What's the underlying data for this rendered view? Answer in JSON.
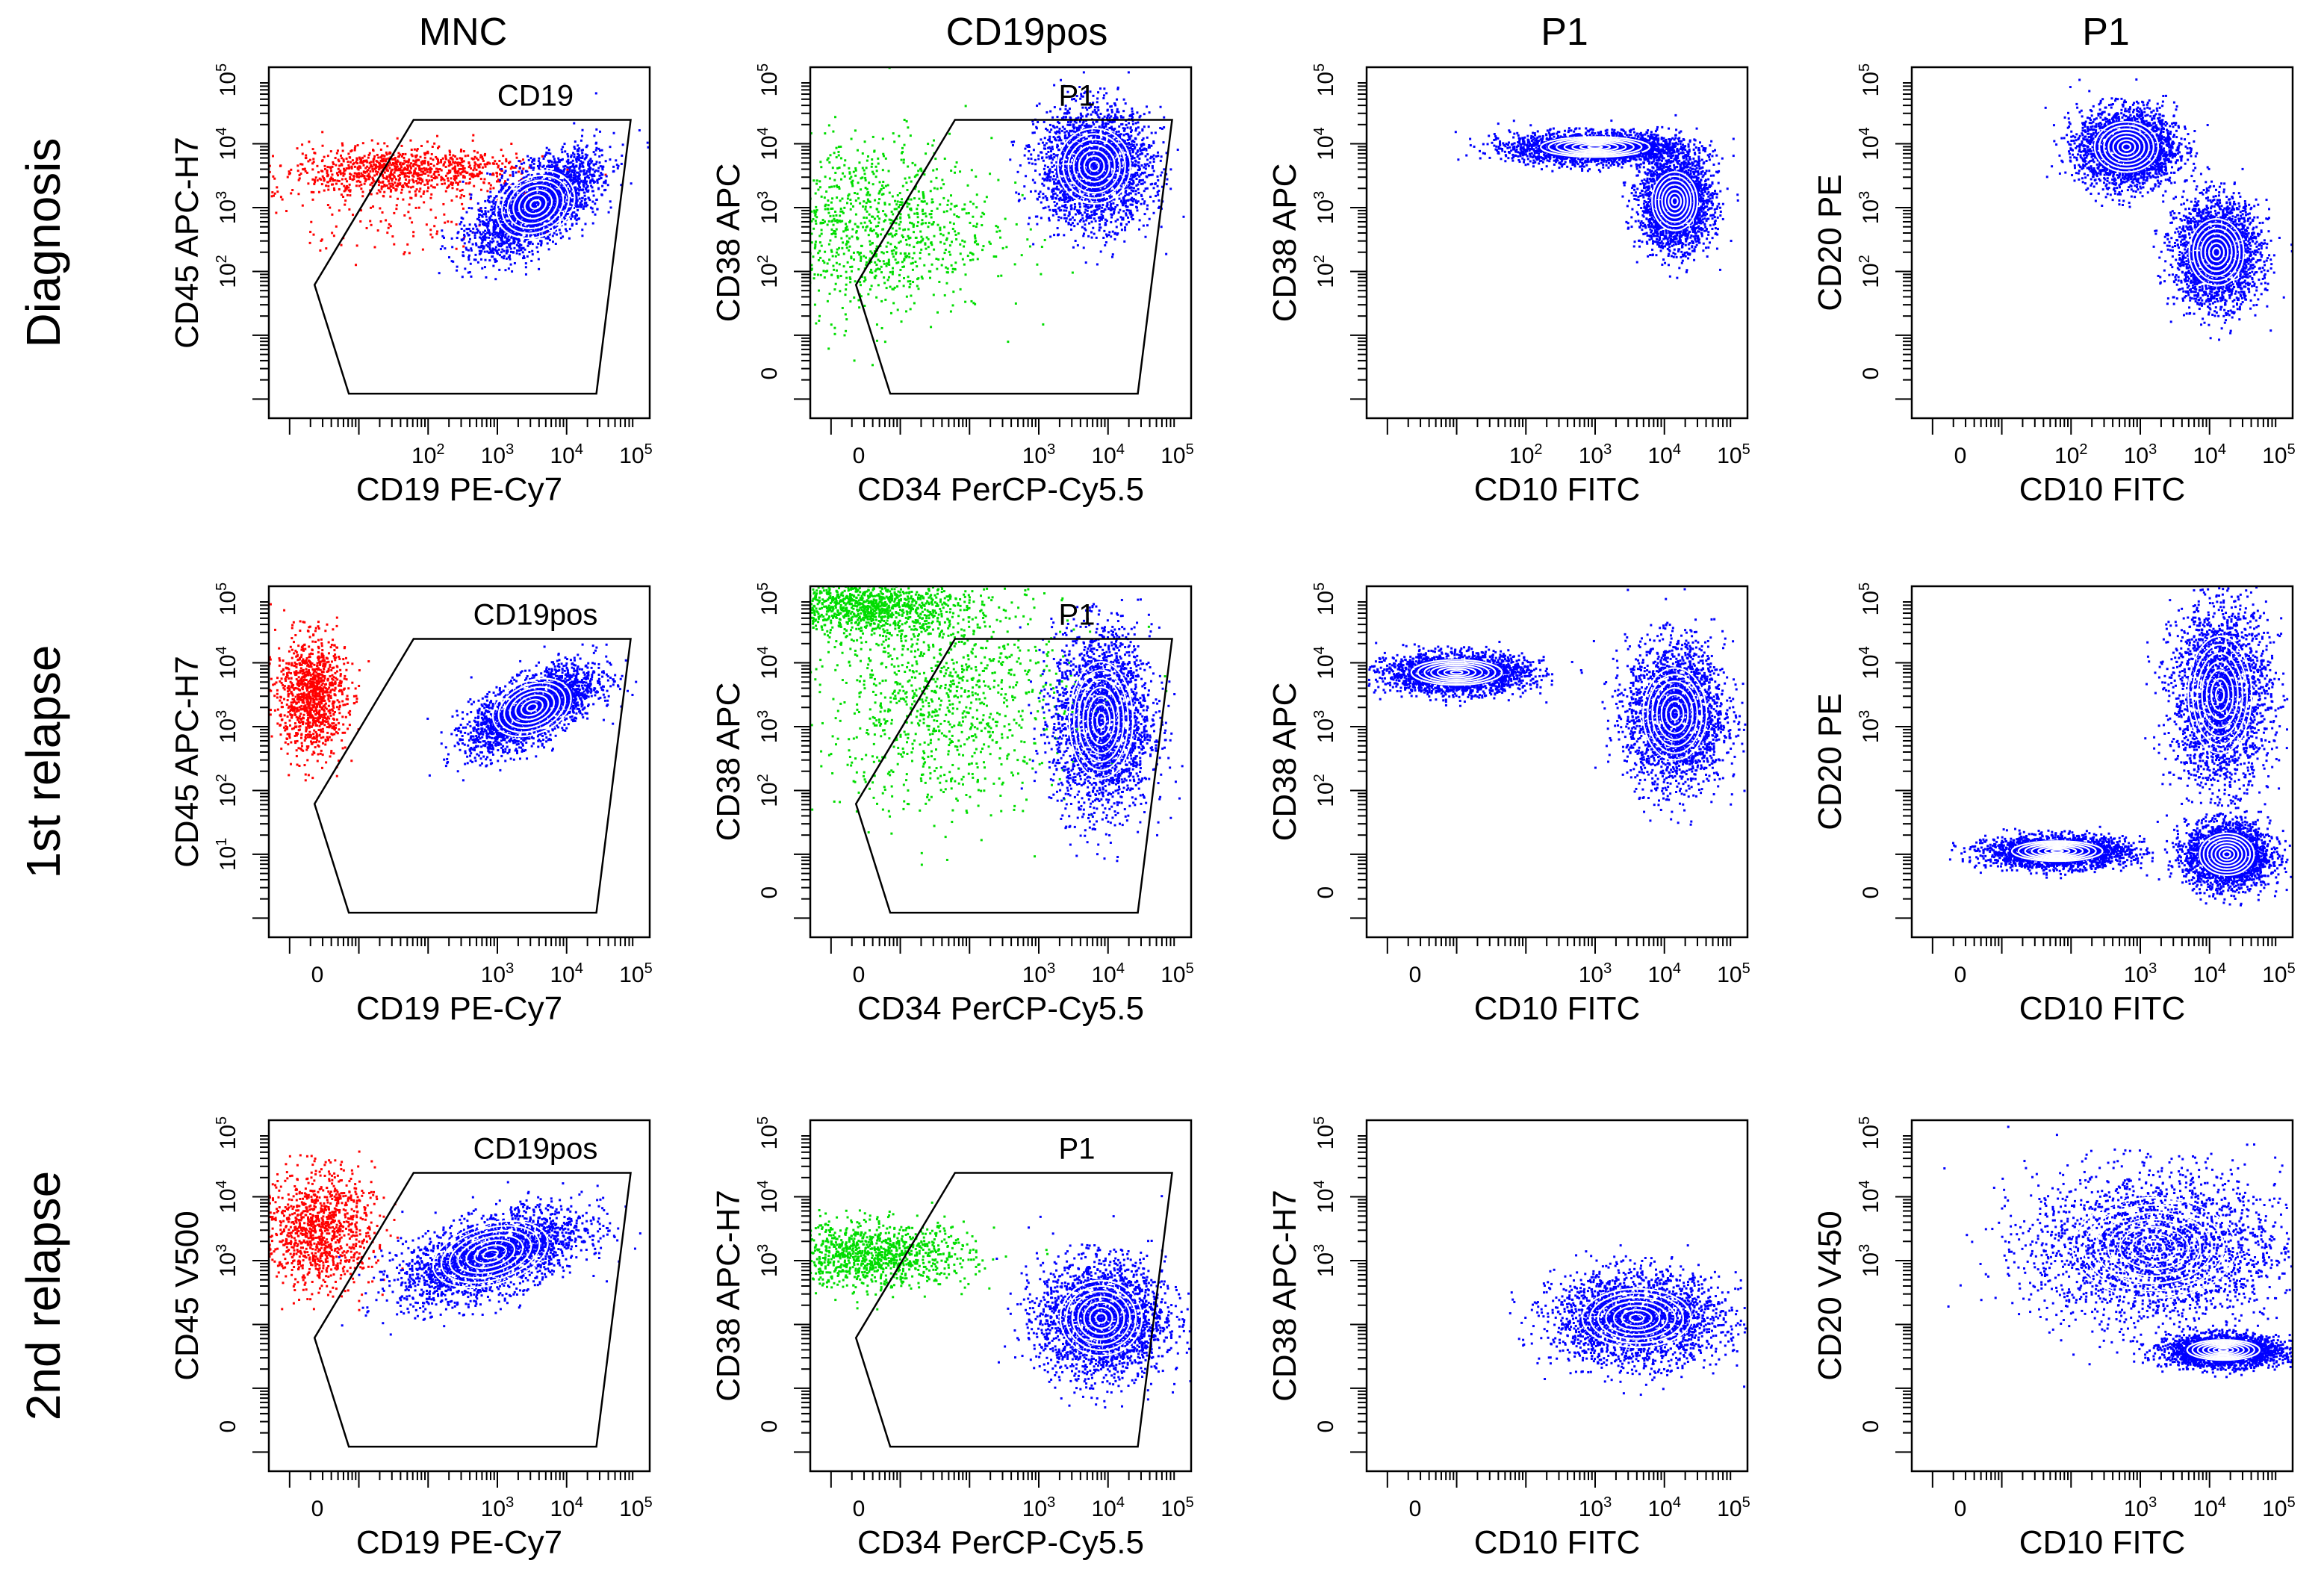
{
  "figure": {
    "column_headers": [
      "MNC",
      "CD19pos",
      "P1",
      "P1"
    ],
    "row_labels": [
      "Diagnosis",
      "1st relapse",
      "2nd relapse"
    ]
  },
  "colors": {
    "gated_population": "#0000ff",
    "outside_gate_cd19neg": "#ff0000",
    "outside_gate_other": "#00dd00",
    "contour": "#ffffff",
    "gate_line": "#000000",
    "axis": "#000000"
  },
  "chart_data": [
    {
      "type": "scatter",
      "row": 0,
      "col": 0,
      "header": "MNC",
      "xlabel": "CD19 PE-Cy7",
      "ylabel": "CD45 APC-H7",
      "x_ticks": [
        "10^2",
        "10^3",
        "10^4",
        "10^5"
      ],
      "y_ticks": [
        "10^2",
        "10^3",
        "10^4",
        "10^5"
      ],
      "gate": "CD19",
      "populations": [
        {
          "color": "red",
          "center": [
            1.6,
            3.6
          ],
          "spread": [
            0.9,
            0.18
          ],
          "tail": [
            -0.1,
            -0.6
          ]
        },
        {
          "color": "blue",
          "center": [
            3.55,
            3.05
          ],
          "spread": [
            0.45,
            0.3
          ],
          "tilt": 0.55
        }
      ]
    },
    {
      "type": "scatter",
      "row": 0,
      "col": 1,
      "header": "CD19pos",
      "xlabel": "CD34 PerCP-Cy5.5",
      "ylabel": "CD38 APC",
      "x_ticks": [
        "0",
        "10^3",
        "10^4",
        "10^5"
      ],
      "y_ticks": [
        "0",
        "10^2",
        "10^3",
        "10^4",
        "10^5"
      ],
      "gate": "P1",
      "populations": [
        {
          "color": "green",
          "center": [
            0.5,
            2.7
          ],
          "spread": [
            0.9,
            0.7
          ]
        },
        {
          "color": "blue",
          "center": [
            3.8,
            3.65
          ],
          "spread": [
            0.4,
            0.45
          ]
        }
      ]
    },
    {
      "type": "scatter",
      "row": 0,
      "col": 2,
      "header": "P1",
      "xlabel": "CD10 FITC",
      "ylabel": "CD38 APC",
      "x_ticks": [
        "10^2",
        "10^3",
        "10^4",
        "10^5"
      ],
      "y_ticks": [
        "10^2",
        "10^3",
        "10^4",
        "10^5"
      ],
      "gate": "",
      "populations": [
        {
          "color": "blue",
          "center": [
            3.0,
            3.95
          ],
          "spread": [
            0.6,
            0.12
          ]
        },
        {
          "color": "blue",
          "center": [
            4.15,
            3.1
          ],
          "spread": [
            0.25,
            0.35
          ]
        }
      ]
    },
    {
      "type": "scatter",
      "row": 0,
      "col": 3,
      "header": "P1",
      "xlabel": "CD10 FITC",
      "ylabel": "CD20 PE",
      "x_ticks": [
        "0",
        "10^2",
        "10^3",
        "10^4",
        "10^5"
      ],
      "y_ticks": [
        "0",
        "10^2",
        "10^3",
        "10^4",
        "10^5"
      ],
      "gate": "",
      "populations": [
        {
          "color": "blue",
          "center": [
            2.8,
            3.95
          ],
          "spread": [
            0.35,
            0.3
          ]
        },
        {
          "color": "blue",
          "center": [
            4.1,
            2.3
          ],
          "spread": [
            0.3,
            0.4
          ]
        }
      ]
    },
    {
      "type": "scatter",
      "row": 1,
      "col": 0,
      "header": "",
      "xlabel": "CD19 PE-Cy7",
      "ylabel": "CD45 APC-H7",
      "x_ticks": [
        "0",
        "10^3",
        "10^4",
        "10^5"
      ],
      "y_ticks": [
        "10^1",
        "10^2",
        "10^3",
        "10^4",
        "10^5"
      ],
      "gate": "CD19pos",
      "populations": [
        {
          "color": "red",
          "center": [
            0.3,
            3.5
          ],
          "spread": [
            0.25,
            0.45
          ]
        },
        {
          "color": "blue",
          "center": [
            3.5,
            3.3
          ],
          "spread": [
            0.45,
            0.25
          ],
          "tilt": 0.45
        }
      ]
    },
    {
      "type": "scatter",
      "row": 1,
      "col": 1,
      "header": "",
      "xlabel": "CD34 PerCP-Cy5.5",
      "ylabel": "CD38 APC",
      "x_ticks": [
        "0",
        "10^3",
        "10^4",
        "10^5"
      ],
      "y_ticks": [
        "0",
        "10^2",
        "10^3",
        "10^4",
        "10^5"
      ],
      "gate": "P1",
      "populations": [
        {
          "color": "green",
          "center": [
            0.5,
            4.9
          ],
          "spread": [
            0.7,
            0.2
          ]
        },
        {
          "color": "green",
          "center": [
            1.6,
            3.5
          ],
          "spread": [
            0.9,
            0.9
          ]
        },
        {
          "color": "blue",
          "center": [
            3.9,
            3.1
          ],
          "spread": [
            0.35,
            0.7
          ]
        }
      ]
    },
    {
      "type": "scatter",
      "row": 1,
      "col": 2,
      "header": "",
      "xlabel": "CD10 FITC",
      "ylabel": "CD38 APC",
      "x_ticks": [
        "0",
        "10^3",
        "10^4",
        "10^5"
      ],
      "y_ticks": [
        "0",
        "10^2",
        "10^3",
        "10^4",
        "10^5"
      ],
      "gate": "",
      "populations": [
        {
          "color": "blue",
          "center": [
            1.0,
            3.85
          ],
          "spread": [
            0.5,
            0.15
          ]
        },
        {
          "color": "blue",
          "center": [
            4.15,
            3.2
          ],
          "spread": [
            0.35,
            0.55
          ]
        }
      ]
    },
    {
      "type": "scatter",
      "row": 1,
      "col": 3,
      "header": "",
      "xlabel": "CD10 FITC",
      "ylabel": "CD20 PE",
      "x_ticks": [
        "0",
        "10^3",
        "10^4",
        "10^5"
      ],
      "y_ticks": [
        "0",
        "10^3",
        "10^4",
        "10^5"
      ],
      "gate": "",
      "populations": [
        {
          "color": "blue",
          "center": [
            4.15,
            3.5
          ],
          "spread": [
            0.35,
            0.7
          ]
        },
        {
          "color": "blue",
          "center": [
            4.25,
            1.0
          ],
          "spread": [
            0.3,
            0.25
          ]
        },
        {
          "color": "blue",
          "center": [
            1.8,
            1.05
          ],
          "spread": [
            0.5,
            0.12
          ]
        }
      ]
    },
    {
      "type": "scatter",
      "row": 2,
      "col": 0,
      "header": "",
      "xlabel": "CD19 PE-Cy7",
      "ylabel": "CD45 V500",
      "x_ticks": [
        "0",
        "10^3",
        "10^4",
        "10^5"
      ],
      "y_ticks": [
        "0",
        "10^3",
        "10^4",
        "10^5"
      ],
      "gate": "CD19pos",
      "populations": [
        {
          "color": "red",
          "center": [
            0.4,
            3.5
          ],
          "spread": [
            0.4,
            0.45
          ]
        },
        {
          "color": "blue",
          "center": [
            2.9,
            3.1
          ],
          "spread": [
            0.65,
            0.3
          ],
          "tilt": 0.3
        }
      ]
    },
    {
      "type": "scatter",
      "row": 2,
      "col": 1,
      "header": "",
      "xlabel": "CD34 PerCP-Cy5.5",
      "ylabel": "CD38 APC-H7",
      "x_ticks": [
        "0",
        "10^3",
        "10^4",
        "10^5"
      ],
      "y_ticks": [
        "0",
        "10^3",
        "10^4",
        "10^5"
      ],
      "gate": "P1",
      "populations": [
        {
          "color": "green",
          "center": [
            0.6,
            3.1
          ],
          "spread": [
            0.7,
            0.25
          ]
        },
        {
          "color": "blue",
          "center": [
            3.9,
            2.1
          ],
          "spread": [
            0.45,
            0.45
          ]
        }
      ]
    },
    {
      "type": "scatter",
      "row": 2,
      "col": 2,
      "header": "",
      "xlabel": "CD10 FITC",
      "ylabel": "CD38 APC-H7",
      "x_ticks": [
        "0",
        "10^3",
        "10^4",
        "10^5"
      ],
      "y_ticks": [
        "0",
        "10^3",
        "10^4",
        "10^5"
      ],
      "gate": "",
      "populations": [
        {
          "color": "blue",
          "center": [
            3.6,
            2.1
          ],
          "spread": [
            0.6,
            0.35
          ]
        }
      ]
    },
    {
      "type": "scatter",
      "row": 2,
      "col": 3,
      "header": "",
      "xlabel": "CD10 FITC",
      "ylabel": "CD20 V450",
      "x_ticks": [
        "0",
        "10^3",
        "10^4",
        "10^5"
      ],
      "y_ticks": [
        "0",
        "10^3",
        "10^4",
        "10^5"
      ],
      "gate": "",
      "populations": [
        {
          "color": "blue",
          "center": [
            3.2,
            3.2
          ],
          "spread": [
            0.9,
            0.6
          ]
        },
        {
          "color": "blue",
          "center": [
            4.2,
            1.6
          ],
          "spread": [
            0.4,
            0.12
          ]
        }
      ]
    }
  ]
}
